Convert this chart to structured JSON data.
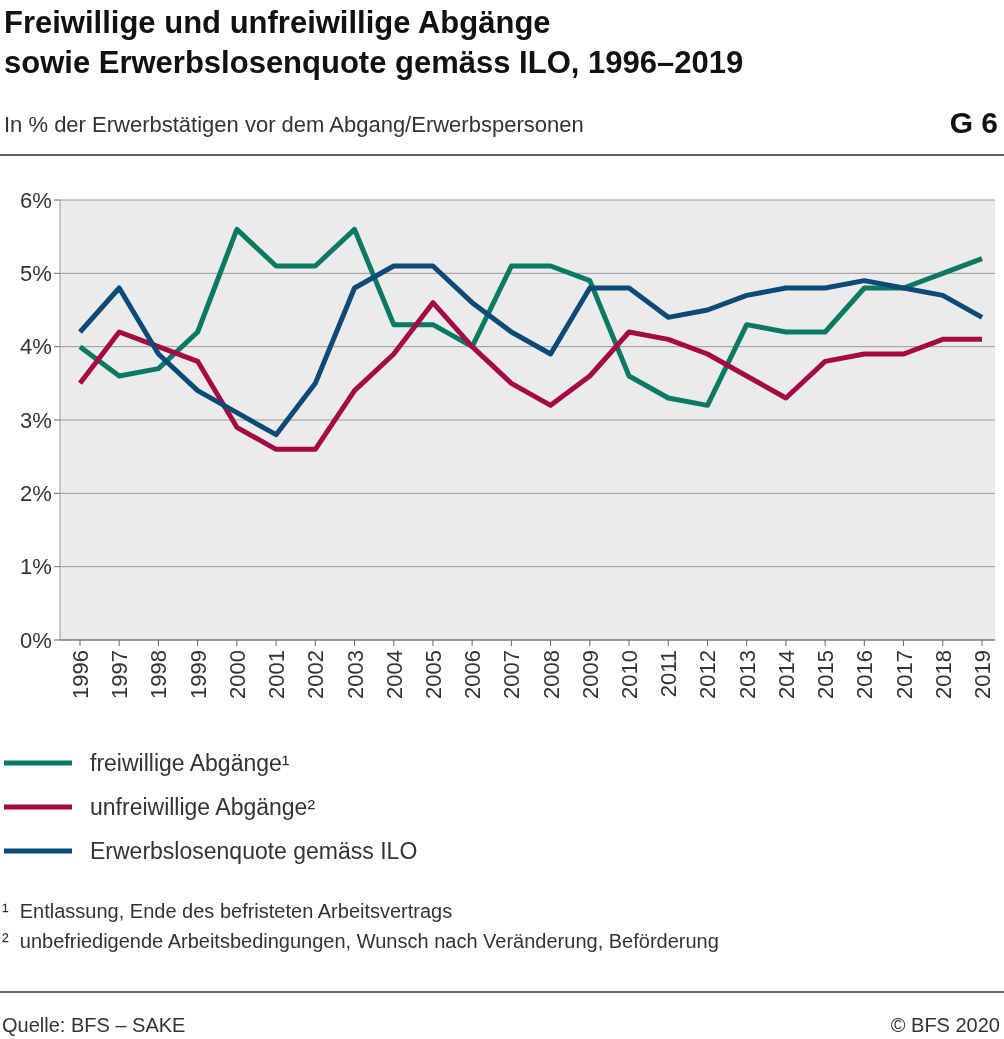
{
  "chart_data": {
    "type": "line",
    "title": "Freiwillige und unfreiwillige Abgänge\nsowie Erwerbslosenquote gemäss ILO, 1996–2019",
    "subtitle": "In % der Erwerbstätigen vor dem Abgang/Erwerbspersonen",
    "categories": [
      "1996",
      "1997",
      "1998",
      "1999",
      "2000",
      "2001",
      "2002",
      "2003",
      "2004",
      "2005",
      "2006",
      "2007",
      "2008",
      "2009",
      "2010",
      "2011",
      "2012",
      "2013",
      "2014",
      "2015",
      "2016",
      "2017",
      "2018",
      "2019"
    ],
    "series": [
      {
        "name": "freiwillige Abgänge¹",
        "color": "#0b7a63",
        "values": [
          4.0,
          3.6,
          3.7,
          4.2,
          5.6,
          5.1,
          5.1,
          5.6,
          4.3,
          4.3,
          4.0,
          5.1,
          5.1,
          4.9,
          3.6,
          3.3,
          3.2,
          4.3,
          4.2,
          4.2,
          4.8,
          4.8,
          5.0,
          5.2
        ]
      },
      {
        "name": "unfreiwillige Abgänge²",
        "color": "#a50a42",
        "values": [
          3.5,
          4.2,
          4.0,
          3.8,
          2.9,
          2.6,
          2.6,
          3.4,
          3.9,
          4.6,
          4.0,
          3.5,
          3.2,
          3.6,
          4.2,
          4.1,
          3.9,
          3.6,
          3.3,
          3.8,
          3.9,
          3.9,
          4.1,
          4.1
        ]
      },
      {
        "name": "Erwerbslosenquote gemäss ILO",
        "color": "#0c4a77",
        "values": [
          4.2,
          4.8,
          3.9,
          3.4,
          3.1,
          2.8,
          3.5,
          4.8,
          5.1,
          5.1,
          4.6,
          4.2,
          3.9,
          4.8,
          4.8,
          4.4,
          4.5,
          4.7,
          4.8,
          4.8,
          4.9,
          4.8,
          4.7,
          4.4
        ]
      }
    ],
    "ylim": [
      0,
      6
    ],
    "yticks": [
      {
        "value": 0,
        "label": "0%"
      },
      {
        "value": 1,
        "label": "1%"
      },
      {
        "value": 2,
        "label": "2%"
      },
      {
        "value": 3,
        "label": "3%"
      },
      {
        "value": 4,
        "label": "4%"
      },
      {
        "value": 5,
        "label": "5%"
      },
      {
        "value": 6,
        "label": "6%"
      }
    ],
    "grid": "y",
    "legend": "bottom",
    "marker": "none",
    "line_style": "solid",
    "annotations": [
      "G 6",
      "¹  Entlassung, Ende des befristeten Arbeitsvertrags",
      "²  unbefriedigende Arbeitsbedingungen, Wunsch nach Veränderung, Beförderung",
      "Quelle: BFS – SAKE",
      "© BFS 2020"
    ]
  }
}
